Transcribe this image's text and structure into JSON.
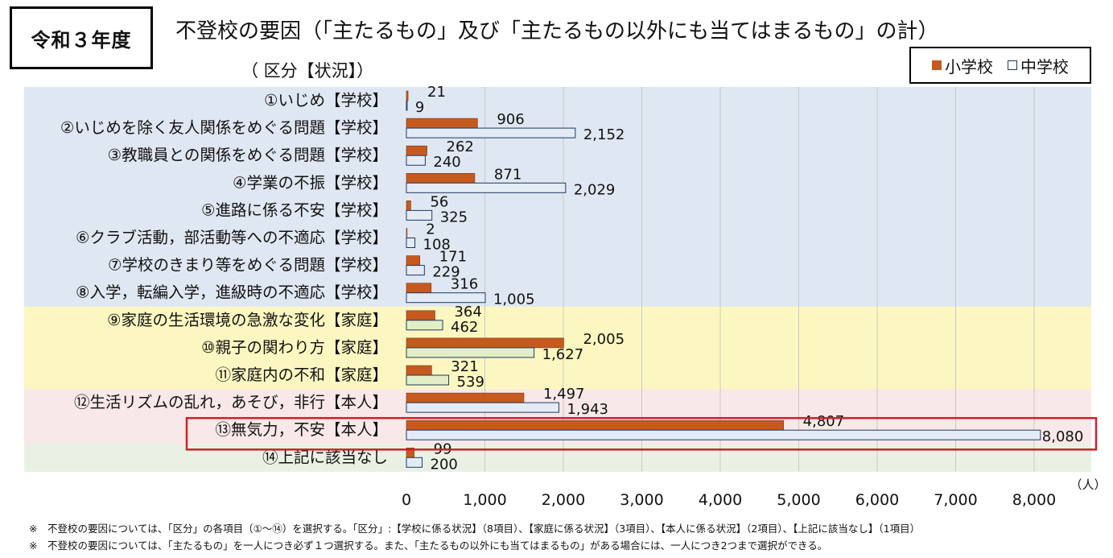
{
  "header": {
    "era_label": "令和３年度",
    "title": "不登校の要因（「主たるもの」及び「主たるもの以外にも当てはまるもの」の計）",
    "subtitle": "（ 区分【状況】）"
  },
  "legend": {
    "elementary": "小学校",
    "junior_high": "中学校"
  },
  "colors": {
    "elementary": "#c65a1e",
    "junior_high_school_band": "#e3ecf6",
    "junior_high_home_band": "#e2efc6",
    "junior_high_stroke": "#1f3864",
    "band_school": "#dfe7f2",
    "band_home": "#fcf7c0",
    "band_self": "#f9e8e8",
    "band_other": "#e9f1e4",
    "highlight": "#d0202c"
  },
  "chart_data": {
    "type": "bar",
    "orientation": "horizontal",
    "title": "不登校の要因（「主たるもの」及び「主たるもの以外にも当てはまるもの」の計）",
    "unit_label": "（人）",
    "xlim": [
      0,
      8000
    ],
    "xticks": [
      0,
      1000,
      2000,
      3000,
      4000,
      5000,
      6000,
      7000,
      8000
    ],
    "xtick_labels": [
      "0",
      "1,000",
      "2,000",
      "3,000",
      "4,000",
      "5,000",
      "6,000",
      "7,000",
      "8,000"
    ],
    "grid": true,
    "legend_position": "top-right",
    "categories": [
      "①いじめ【学校】",
      "②いじめを除く友人関係をめぐる問題【学校】",
      "③教職員との関係をめぐる問題【学校】",
      "④学業の不振【学校】",
      "⑤進路に係る不安【学校】",
      "⑥クラブ活動，部活動等への不適応【学校】",
      "⑦学校のきまり等をめぐる問題【学校】",
      "⑧入学，転編入学，進級時の不適応【学校】",
      "⑨家庭の生活環境の急激な変化【家庭】",
      "⑩親子の関わり方【家庭】",
      "⑪家庭内の不和【家庭】",
      "⑫生活リズムの乱れ，あそび，非行【本人】",
      "⑬無気力，不安【本人】",
      "⑭上記に該当なし"
    ],
    "groups": [
      "school",
      "school",
      "school",
      "school",
      "school",
      "school",
      "school",
      "school",
      "home",
      "home",
      "home",
      "self",
      "self",
      "other"
    ],
    "highlighted_category_index": 12,
    "series": [
      {
        "name": "小学校",
        "values": [
          21,
          906,
          262,
          871,
          56,
          2,
          171,
          316,
          364,
          2005,
          321,
          1497,
          4807,
          99
        ],
        "labels": [
          "21",
          "906",
          "262",
          "871",
          "56",
          "2",
          "171",
          "316",
          "364",
          "2,005",
          "321",
          "1,497",
          "4,807",
          "99"
        ]
      },
      {
        "name": "中学校",
        "values": [
          9,
          2152,
          240,
          2029,
          325,
          108,
          229,
          1005,
          462,
          1627,
          539,
          1943,
          8080,
          200
        ],
        "labels": [
          "9",
          "2,152",
          "240",
          "2,029",
          "325",
          "108",
          "229",
          "1,005",
          "462",
          "1,627",
          "539",
          "1,943",
          "8,080",
          "200"
        ]
      }
    ]
  },
  "notes": [
    "※　不登校の要因については、「区分」の各項目（①～⑭）を選択する。「区分」:【学校に係る状況】（8項目）、【家庭に係る状況】（3項目）、【本人に係る状況】（2項目）、【上記に該当なし】（1項目）",
    "※　不登校の要因については、「主たるもの」を一人につき必ず１つ選択する。また、「主たるもの以外にも当てはまるもの」がある場合には、一人につき2つまで選択ができる。"
  ]
}
